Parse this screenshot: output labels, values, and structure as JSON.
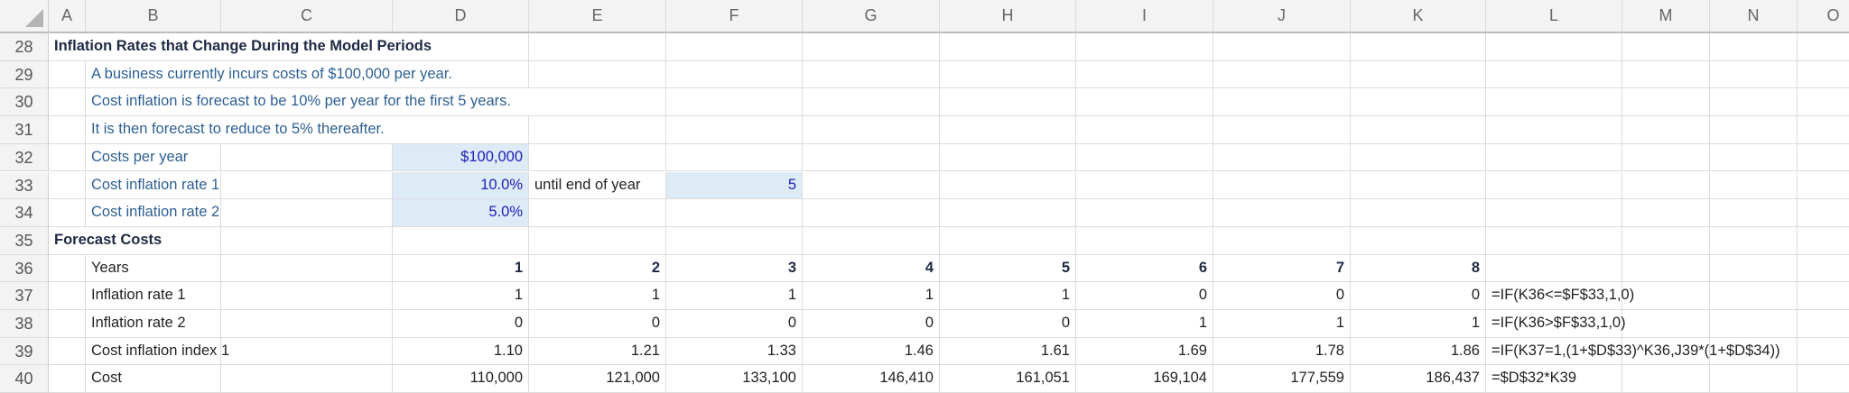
{
  "columns": [
    "A",
    "B",
    "C",
    "D",
    "E",
    "F",
    "G",
    "H",
    "I",
    "J",
    "K",
    "L",
    "M",
    "N",
    "O"
  ],
  "rows": [
    {
      "num": "28",
      "cells": {
        "A": "Inflation Rates that Change During the Model Periods"
      }
    },
    {
      "num": "29",
      "cells": {
        "B": "A business currently incurs costs of $100,000 per year."
      }
    },
    {
      "num": "30",
      "cells": {
        "B": "Cost inflation is forecast to be 10% per year for the first 5 years."
      }
    },
    {
      "num": "31",
      "cells": {
        "B": "It is then forecast to reduce to 5% thereafter."
      }
    },
    {
      "num": "32",
      "cells": {
        "B": "Costs per year",
        "D": "$100,000"
      }
    },
    {
      "num": "33",
      "cells": {
        "B": "Cost inflation rate 1",
        "D": "10.0%",
        "E": "until end of year",
        "F": "5"
      }
    },
    {
      "num": "34",
      "cells": {
        "B": "Cost inflation rate 2",
        "D": "5.0%"
      }
    },
    {
      "num": "35",
      "cells": {
        "A": "Forecast Costs"
      }
    },
    {
      "num": "36",
      "cells": {
        "B": "Years",
        "D": "1",
        "E": "2",
        "F": "3",
        "G": "4",
        "H": "5",
        "I": "6",
        "J": "7",
        "K": "8"
      }
    },
    {
      "num": "37",
      "cells": {
        "B": "Inflation rate 1",
        "D": "1",
        "E": "1",
        "F": "1",
        "G": "1",
        "H": "1",
        "I": "0",
        "J": "0",
        "K": "0",
        "L": "=IF(K36<=$F$33,1,0)"
      }
    },
    {
      "num": "38",
      "cells": {
        "B": "Inflation rate 2",
        "D": "0",
        "E": "0",
        "F": "0",
        "G": "0",
        "H": "0",
        "I": "1",
        "J": "1",
        "K": "1",
        "L": "=IF(K36>$F$33,1,0)"
      }
    },
    {
      "num": "39",
      "cells": {
        "B": "Cost inflation index 1",
        "D": "1.10",
        "E": "1.21",
        "F": "1.33",
        "G": "1.46",
        "H": "1.61",
        "I": "1.69",
        "J": "1.78",
        "K": "1.86",
        "L": "=IF(K37=1,(1+$D$33)^K36,J39*(1+$D$34))"
      }
    },
    {
      "num": "40",
      "cells": {
        "B": "Cost",
        "D": "110,000",
        "E": "121,000",
        "F": "133,100",
        "G": "146,410",
        "H": "161,051",
        "I": "169,104",
        "J": "177,559",
        "K": "186,437",
        "L": "=$D$32*K39"
      }
    }
  ],
  "colors": {
    "input_fill": "#ddebf7",
    "input_text": "#2020b8",
    "note_text": "#2d5f93",
    "title_text": "#1f2a44"
  }
}
